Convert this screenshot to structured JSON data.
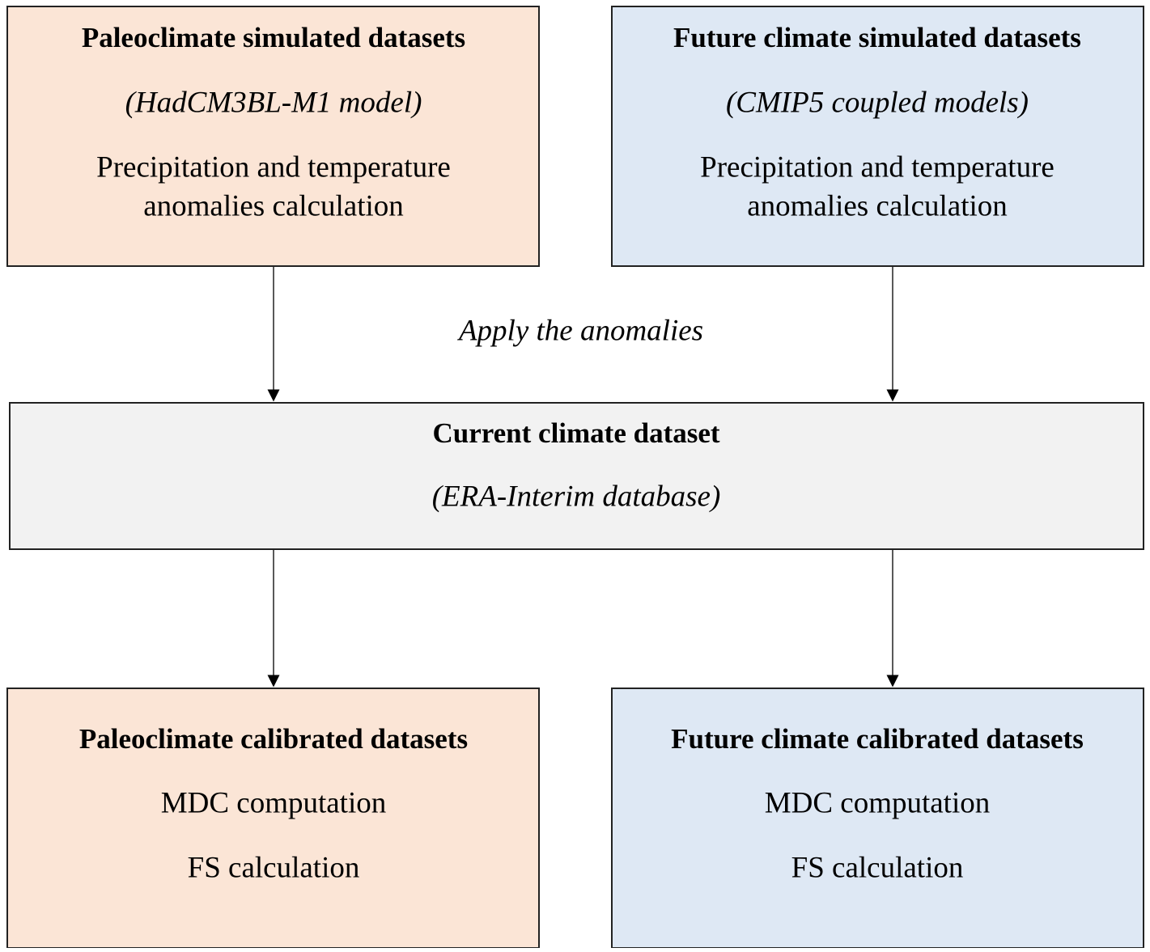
{
  "nodes": [
    {
      "title": "Paleoclimate simulated datasets",
      "lines": [
        "(HadCM3BL-M1 model)",
        "Precipitation and temperature",
        "anomalies calculation"
      ]
    },
    {
      "title": "Future climate simulated datasets",
      "lines": [
        "(CMIP5 coupled models)",
        "Precipitation and temperature",
        "anomalies calculation"
      ]
    },
    {
      "title": "Current climate dataset",
      "lines": [
        "(ERA-Interim database)"
      ]
    },
    {
      "title": "Paleoclimate calibrated datasets",
      "lines": [
        "MDC computation",
        "FS calculation"
      ]
    },
    {
      "title": "Future climate calibrated datasets",
      "lines": [
        "MDC computation",
        "FS calculation"
      ]
    }
  ],
  "edge_label": "Apply the anomalies"
}
